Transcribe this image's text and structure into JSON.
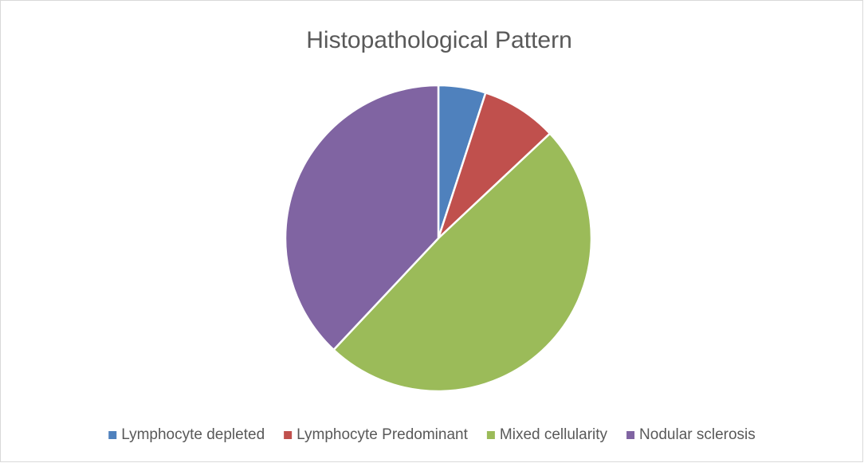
{
  "chart_data": {
    "type": "pie",
    "title": "Histopathological Pattern",
    "categories": [
      "Lymphocyte depleted",
      "Lymphocyte Predominant",
      "Mixed cellularity",
      "Nodular sclerosis"
    ],
    "values": [
      5,
      8,
      49,
      38
    ],
    "colors": [
      "#4f81bd",
      "#c0504d",
      "#9bbb59",
      "#8064a2"
    ],
    "legend": "bottom"
  }
}
